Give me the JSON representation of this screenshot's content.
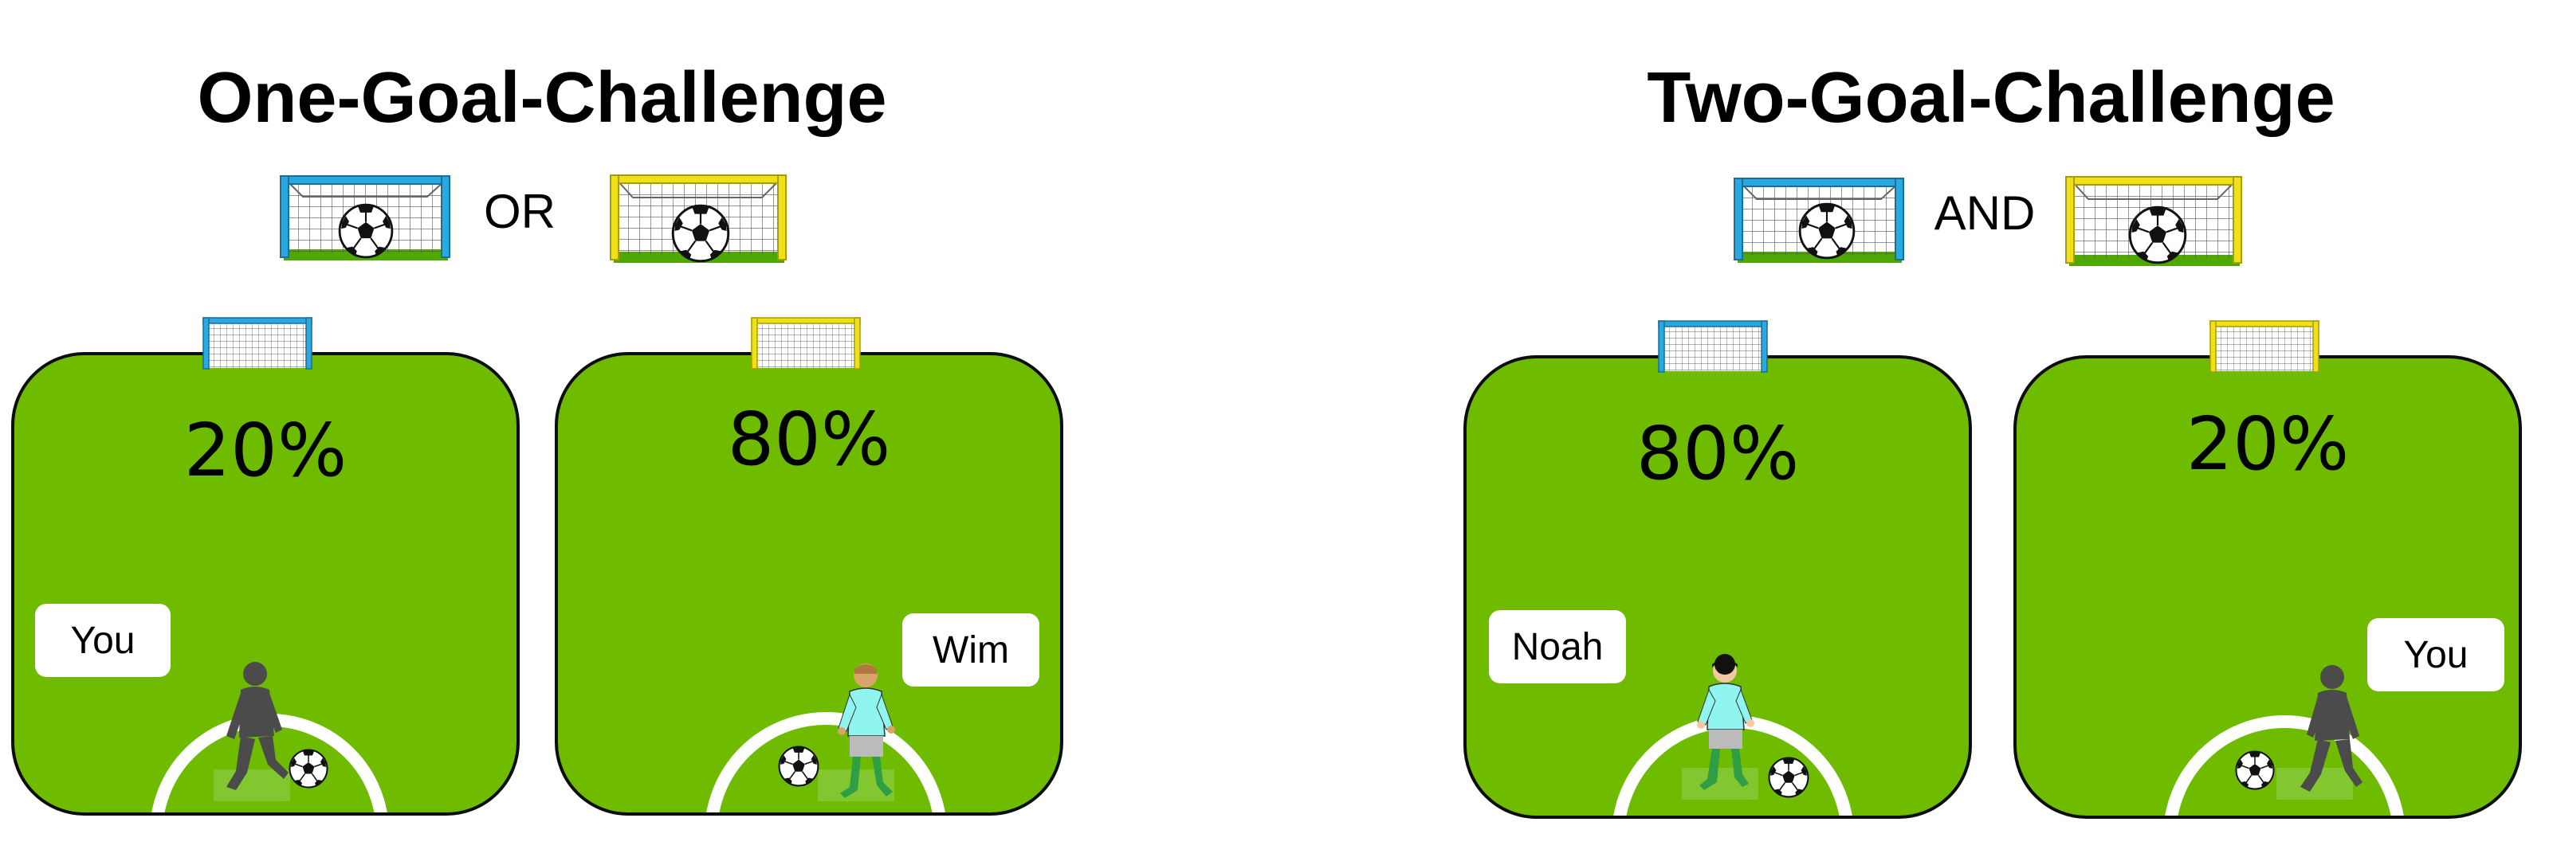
{
  "challenges": [
    {
      "title": "One-Goal-Challenge",
      "connector": "OR",
      "fields": [
        {
          "goal_color": "#2aa9e0",
          "percent": "20%",
          "name": "You",
          "player": "shadow"
        },
        {
          "goal_color": "#efe01a",
          "percent": "80%",
          "name": "Wim",
          "player": "wim"
        }
      ]
    },
    {
      "title": "Two-Goal-Challenge",
      "connector": "AND",
      "fields": [
        {
          "goal_color": "#2aa9e0",
          "percent": "80%",
          "name": "Noah",
          "player": "noah"
        },
        {
          "goal_color": "#efe01a",
          "percent": "20%",
          "name": "You",
          "player": "shadow"
        }
      ]
    }
  ],
  "colors": {
    "field": "#6ebb00",
    "blue_goal": "#2aa9e0",
    "yellow_goal": "#efe01a"
  },
  "icons": [
    "soccer-goal-icon",
    "soccer-ball-icon",
    "player-icon"
  ]
}
